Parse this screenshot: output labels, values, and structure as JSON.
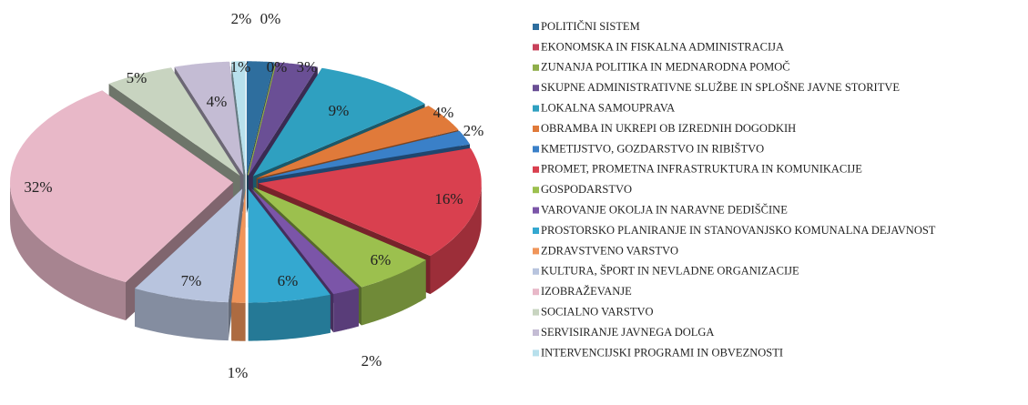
{
  "chart_data": {
    "type": "pie",
    "categories": [
      "POLITIČNI SISTEM",
      "EKONOMSKA IN FISKALNA ADMINISTRACIJA",
      "ZUNANJA POLITIKA IN MEDNARODNA POMOČ",
      "SKUPNE ADMINISTRATIVNE SLUŽBE IN SPLOŠNE JAVNE STORITVE",
      "LOKALNA SAMOUPRAVA",
      "OBRAMBA IN UKREPI OB IZREDNIH DOGODKIH",
      "KMETIJSTVO, GOZDARSTVO IN RIBIŠTVO",
      "PROMET, PROMETNA INFRASTRUKTURA IN KOMUNIKACIJE",
      "GOSPODARSTVO",
      "VAROVANJE OKOLJA IN NARAVNE DEDIŠČINE",
      "PROSTORSKO PLANIRANJE IN STANOVANJSKO KOMUNALNA DEJAVNOST",
      "ZDRAVSTVENO VARSTVO",
      "KULTURA, ŠPORT IN NEVLADNE ORGANIZACIJE",
      "IZOBRAŽEVANJE",
      "SOCIALNO VARSTVO",
      "SERVISIRANJE JAVNEGA DOLGA",
      "INTERVENCIJSKI PROGRAMI IN OBVEZNOSTI"
    ],
    "values": [
      2,
      0,
      0,
      3,
      9,
      4,
      2,
      16,
      6,
      2,
      6,
      1,
      7,
      32,
      5,
      4,
      1
    ],
    "value_labels": [
      "2%",
      "0%",
      "0%",
      "3%",
      "9%",
      "4%",
      "2%",
      "16%",
      "6%",
      "2%",
      "6%",
      "1%",
      "7%",
      "32%",
      "5%",
      "4%",
      "1%"
    ],
    "colors": [
      "#2e6e9e",
      "#c8415a",
      "#8fae4a",
      "#6a4f95",
      "#2fa0c0",
      "#e07a3a",
      "#3a80c8",
      "#d9404f",
      "#9cc04e",
      "#7b55a8",
      "#34a8d0",
      "#f0955a",
      "#b8c4de",
      "#e8b8c8",
      "#c8d4c0",
      "#c4bcd4",
      "#b8e0ec"
    ]
  }
}
